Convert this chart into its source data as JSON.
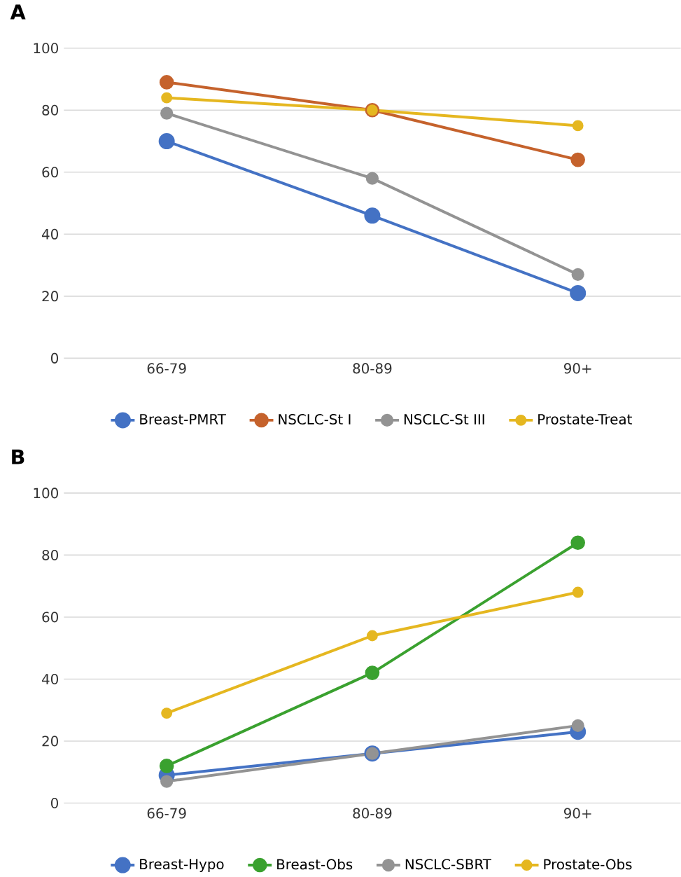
{
  "chart_data": [
    {
      "type": "line",
      "title": "A",
      "categories": [
        "66-79",
        "80-89",
        "90+"
      ],
      "series": [
        {
          "name": "Breast-PMRT",
          "color": "#4472c4",
          "values": [
            70,
            46,
            21
          ]
        },
        {
          "name": "NSCLC-St I",
          "color": "#c5622c",
          "values": [
            89,
            80,
            64
          ]
        },
        {
          "name": "NSCLC-St III",
          "color": "#939393",
          "values": [
            79,
            58,
            27
          ]
        },
        {
          "name": "Prostate-Treat",
          "color": "#e5b720",
          "values": [
            84,
            80,
            75
          ]
        }
      ],
      "ylim": [
        0,
        100
      ],
      "yticks": [
        0,
        20,
        40,
        60,
        80,
        100
      ],
      "grid": "y",
      "legend": "bottom",
      "marker": "circle",
      "line_style": "solid"
    },
    {
      "type": "line",
      "title": "B",
      "categories": [
        "66-79",
        "80-89",
        "90+"
      ],
      "series": [
        {
          "name": "Breast-Hypo",
          "color": "#4472c4",
          "values": [
            9,
            16,
            23
          ]
        },
        {
          "name": "Breast-Obs",
          "color": "#3aa12f",
          "values": [
            12,
            42,
            84
          ]
        },
        {
          "name": "NSCLC-SBRT",
          "color": "#939393",
          "values": [
            7,
            16,
            25
          ]
        },
        {
          "name": "Prostate-Obs",
          "color": "#e5b720",
          "values": [
            29,
            54,
            68
          ]
        }
      ],
      "ylim": [
        0,
        100
      ],
      "yticks": [
        0,
        20,
        40,
        60,
        80,
        100
      ],
      "grid": "y",
      "legend": "bottom",
      "marker": "circle",
      "line_style": "solid"
    }
  ]
}
